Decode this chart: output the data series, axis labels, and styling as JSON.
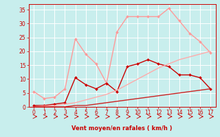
{
  "background_color": "#c8eeed",
  "grid_color": "#b0d8d8",
  "xlabel": "Vent moyen/en rafales ( km/h )",
  "xlabel_color": "#cc0000",
  "tick_color": "#cc0000",
  "arrow_color": "#cc0000",
  "xlim": [
    -0.5,
    17.5
  ],
  "ylim": [
    0,
    37
  ],
  "xticks": [
    0,
    1,
    2,
    3,
    4,
    5,
    6,
    7,
    8,
    9,
    10,
    11,
    12,
    13,
    14,
    15,
    16,
    17
  ],
  "yticks": [
    0,
    5,
    10,
    15,
    20,
    25,
    30,
    35
  ],
  "series": [
    {
      "label": "light_pink_upper",
      "x": [
        0,
        1,
        2,
        3,
        4,
        5,
        6,
        7,
        8,
        9,
        10,
        11,
        12,
        13,
        14,
        15,
        16,
        17
      ],
      "y": [
        5.5,
        3.0,
        3.5,
        6.5,
        24.5,
        19.0,
        15.5,
        8.5,
        27.0,
        32.5,
        32.5,
        32.5,
        32.5,
        35.5,
        31.0,
        26.5,
        23.5,
        19.5
      ],
      "color": "#ff9999",
      "linewidth": 1.0,
      "marker": "D",
      "markersize": 2.0
    },
    {
      "label": "dark_red_main",
      "x": [
        0,
        1,
        2,
        3,
        4,
        5,
        6,
        7,
        8,
        9,
        10,
        11,
        12,
        13,
        14,
        15,
        16,
        17
      ],
      "y": [
        0.5,
        0.5,
        1.0,
        1.5,
        10.5,
        8.0,
        6.5,
        8.5,
        5.5,
        14.5,
        15.5,
        17.0,
        15.5,
        14.5,
        11.5,
        11.5,
        10.5,
        6.5
      ],
      "color": "#cc0000",
      "linewidth": 1.0,
      "marker": "D",
      "markersize": 2.0
    },
    {
      "label": "light_pink_lower_diagonal",
      "x": [
        0,
        1,
        2,
        3,
        4,
        5,
        6,
        7,
        8,
        9,
        10,
        11,
        12,
        13,
        14,
        15,
        16,
        17
      ],
      "y": [
        0.0,
        0.3,
        0.5,
        1.0,
        1.5,
        2.5,
        3.5,
        4.5,
        6.0,
        8.0,
        10.0,
        12.0,
        14.0,
        15.5,
        17.0,
        18.0,
        19.0,
        20.0
      ],
      "color": "#ffaaaa",
      "linewidth": 1.0,
      "marker": null,
      "markersize": 0
    },
    {
      "label": "dark_red_flat",
      "x": [
        0,
        1,
        2,
        3,
        4,
        5,
        6,
        7,
        8,
        9,
        10,
        11,
        12,
        13,
        14,
        15,
        16,
        17
      ],
      "y": [
        0.0,
        0.0,
        0.0,
        0.0,
        0.5,
        0.5,
        1.0,
        1.5,
        2.0,
        2.5,
        3.0,
        3.5,
        4.0,
        4.5,
        5.0,
        5.5,
        6.0,
        6.5
      ],
      "color": "#cc2222",
      "linewidth": 1.0,
      "marker": null,
      "markersize": 0
    }
  ]
}
